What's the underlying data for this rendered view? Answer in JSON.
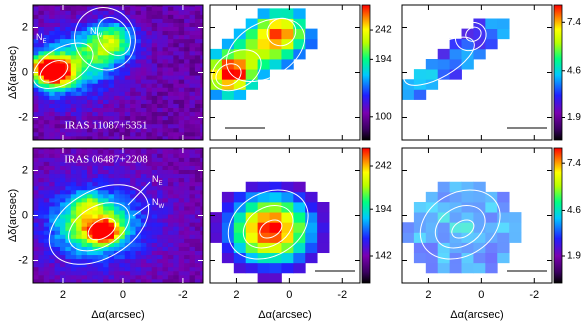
{
  "chart_data": [
    {
      "type": "map",
      "ylabel": "Δδ(arcsec)",
      "xlim": [
        3,
        -2.67
      ],
      "ylim": [
        -3,
        3
      ],
      "xticks": [
        2,
        0,
        -2
      ],
      "yticks": [
        2,
        0,
        -2
      ],
      "annotations": [
        "IRAS 11087+5351"
      ],
      "components": [
        {
          "text": "N",
          "sub": "E"
        },
        {
          "text": "N",
          "sub": "W"
        }
      ]
    },
    {
      "type": "map",
      "xlim": [
        3,
        -2.67
      ],
      "ylim": [
        -3,
        3
      ],
      "xticks": [
        2,
        0,
        -2
      ],
      "yticks": [
        2,
        0,
        -2
      ],
      "clim": [
        62,
        283
      ],
      "cticks": [
        242,
        194,
        100
      ]
    },
    {
      "type": "map",
      "xlim": [
        3,
        -2.67
      ],
      "ylim": [
        -3,
        3
      ],
      "xticks": [
        2,
        0,
        -2
      ],
      "yticks": [
        2,
        0,
        -2
      ],
      "clim": [
        0.6,
        8.4
      ],
      "cticks": [
        7.4,
        4.6,
        1.9
      ]
    },
    {
      "type": "map",
      "ylabel": "Δδ(arcsec)",
      "xlabel": "Δα(arcsec)",
      "xlim": [
        3,
        -2.67
      ],
      "ylim": [
        -3,
        3
      ],
      "xticks": [
        2,
        0,
        -2
      ],
      "yticks": [
        2,
        0,
        -2
      ],
      "annotations": [
        "IRAS 06487+2208"
      ],
      "components": [
        {
          "text": "N",
          "sub": "E"
        },
        {
          "text": "N",
          "sub": "W"
        }
      ]
    },
    {
      "type": "map",
      "xlabel": "Δα(arcsec)",
      "xlim": [
        3,
        -2.67
      ],
      "ylim": [
        -3,
        3
      ],
      "xticks": [
        2,
        0,
        -2
      ],
      "yticks": [
        2,
        0,
        -2
      ],
      "clim": [
        112,
        262
      ],
      "cticks": [
        242,
        194,
        142
      ]
    },
    {
      "type": "map",
      "xlabel": "Δα(arcsec)",
      "xlim": [
        3,
        -2.67
      ],
      "ylim": [
        -3,
        3
      ],
      "xticks": [
        2,
        0,
        -2
      ],
      "yticks": [
        2,
        0,
        -2
      ],
      "clim": [
        0.3,
        8.3
      ],
      "cticks": [
        7.4,
        4.6,
        1.9
      ]
    }
  ]
}
